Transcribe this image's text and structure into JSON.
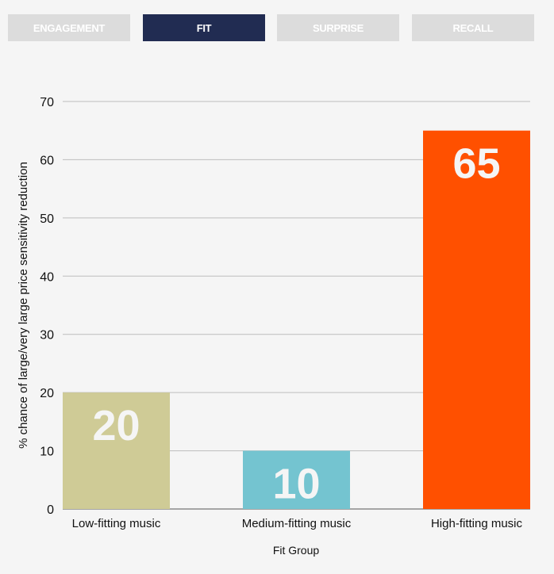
{
  "tabs": [
    {
      "label": "ENGAGEMENT",
      "active": false
    },
    {
      "label": "FIT",
      "active": true
    },
    {
      "label": "SURPRISE",
      "active": false
    },
    {
      "label": "RECALL",
      "active": false
    }
  ],
  "colors": {
    "tab_active": "#212c52",
    "tab_inactive": "#dcdcdc",
    "grid": "#bdbdbd",
    "label_text": "#f5f5f5"
  },
  "chart_data": {
    "type": "bar",
    "categories": [
      "Low-fitting music",
      "Medium-fitting music",
      "High-fitting music"
    ],
    "values": [
      20,
      10,
      65
    ],
    "data_labels": [
      "20",
      "10",
      "65"
    ],
    "bar_colors": [
      "#cfcb96",
      "#74c4d0",
      "#ff5000"
    ],
    "xlabel": "Fit Group",
    "ylabel": "% chance of large/very large price sensitivity reduction",
    "ylim": [
      0,
      70
    ],
    "yticks": [
      0,
      10,
      20,
      30,
      40,
      50,
      60,
      70
    ],
    "grid": true,
    "legend": "none"
  }
}
